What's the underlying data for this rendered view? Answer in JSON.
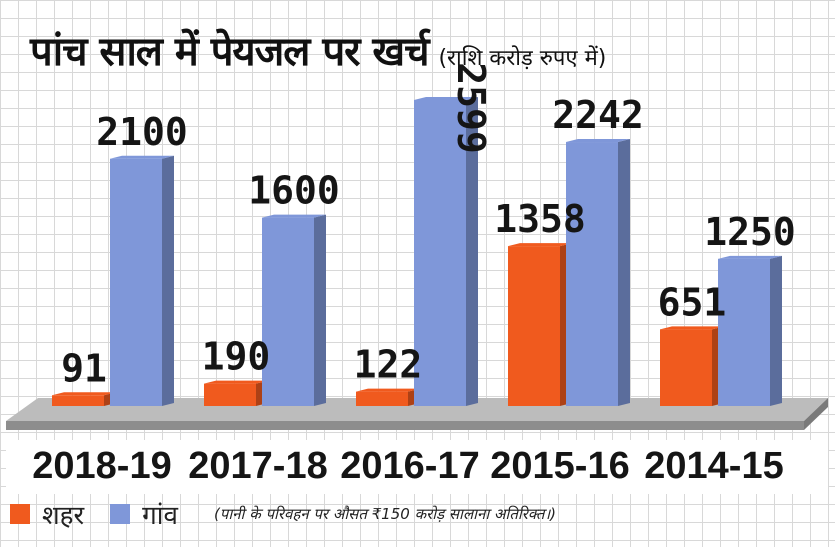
{
  "title": "पांच साल में पेयजल पर खर्च",
  "subtitle": "(राशि करोड़ रुपए में)",
  "legend": {
    "city_label": "शहर",
    "village_label": "गांव",
    "city_color": "#f05a1e",
    "village_color": "#7f97d9"
  },
  "note": "(पानी के परिवहन पर औसत ₹150 करोड़ सालाना अतिरिक्त।)",
  "chart_data": {
    "type": "bar",
    "title": "पांच साल में पेयजल पर खर्च",
    "subtitle": "(राशि करोड़ रुपए में)",
    "categories": [
      "2018-19",
      "2017-18",
      "2016-17",
      "2015-16",
      "2014-15"
    ],
    "series": [
      {
        "name": "शहर",
        "color": "#f05a1e",
        "values": [
          91,
          190,
          122,
          1358,
          651
        ]
      },
      {
        "name": "गांव",
        "color": "#7f97d9",
        "values": [
          2100,
          1600,
          2599,
          2242,
          1250
        ]
      }
    ],
    "ylim": [
      0,
      2700
    ],
    "legend_position": "bottom-left",
    "grid": true
  }
}
